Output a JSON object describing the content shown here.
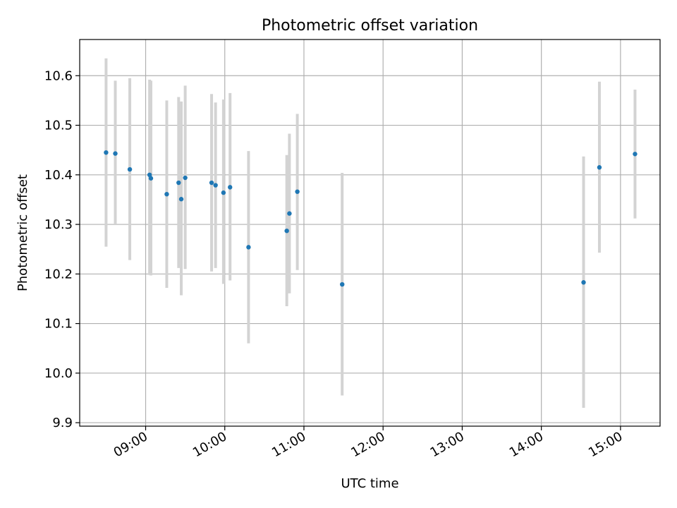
{
  "chart_data": {
    "type": "scatter",
    "title": "Photometric offset variation",
    "xlabel": "UTC time",
    "ylabel": "Photometric offset",
    "xlim": [
      "08:10",
      "15:30"
    ],
    "ylim": [
      9.893,
      10.673
    ],
    "x_ticks": [
      "09:00",
      "10:00",
      "11:00",
      "12:00",
      "13:00",
      "14:00",
      "15:00"
    ],
    "y_ticks": [
      "9.9",
      "10.0",
      "10.1",
      "10.2",
      "10.3",
      "10.4",
      "10.5",
      "10.6"
    ],
    "grid": true,
    "series": [
      {
        "marker_color": "#1f77b4",
        "errorbar_color": "#d3d3d3",
        "points": [
          {
            "x": "08:30",
            "y": 10.445,
            "yerr_low": 10.255,
            "yerr_high": 10.635
          },
          {
            "x": "08:37",
            "y": 10.443,
            "yerr_low": 10.3,
            "yerr_high": 10.59
          },
          {
            "x": "08:48",
            "y": 10.411,
            "yerr_low": 10.228,
            "yerr_high": 10.595
          },
          {
            "x": "09:03",
            "y": 10.4,
            "yerr_low": 10.198,
            "yerr_high": 10.592
          },
          {
            "x": "09:04",
            "y": 10.393,
            "yerr_low": 10.197,
            "yerr_high": 10.59
          },
          {
            "x": "09:16",
            "y": 10.361,
            "yerr_low": 10.172,
            "yerr_high": 10.55
          },
          {
            "x": "09:25",
            "y": 10.384,
            "yerr_low": 10.212,
            "yerr_high": 10.557
          },
          {
            "x": "09:27",
            "y": 10.351,
            "yerr_low": 10.157,
            "yerr_high": 10.548
          },
          {
            "x": "09:30",
            "y": 10.394,
            "yerr_low": 10.21,
            "yerr_high": 10.58
          },
          {
            "x": "09:50",
            "y": 10.384,
            "yerr_low": 10.205,
            "yerr_high": 10.563
          },
          {
            "x": "09:53",
            "y": 10.379,
            "yerr_low": 10.212,
            "yerr_high": 10.546
          },
          {
            "x": "09:59",
            "y": 10.364,
            "yerr_low": 10.18,
            "yerr_high": 10.552
          },
          {
            "x": "10:04",
            "y": 10.375,
            "yerr_low": 10.187,
            "yerr_high": 10.565
          },
          {
            "x": "10:18",
            "y": 10.254,
            "yerr_low": 10.06,
            "yerr_high": 10.448
          },
          {
            "x": "10:47",
            "y": 10.287,
            "yerr_low": 10.135,
            "yerr_high": 10.44
          },
          {
            "x": "10:49",
            "y": 10.322,
            "yerr_low": 10.161,
            "yerr_high": 10.483
          },
          {
            "x": "10:55",
            "y": 10.366,
            "yerr_low": 10.208,
            "yerr_high": 10.523
          },
          {
            "x": "11:29",
            "y": 10.179,
            "yerr_low": 9.955,
            "yerr_high": 10.404
          },
          {
            "x": "14:32",
            "y": 10.183,
            "yerr_low": 9.93,
            "yerr_high": 10.437
          },
          {
            "x": "14:44",
            "y": 10.415,
            "yerr_low": 10.243,
            "yerr_high": 10.588
          },
          {
            "x": "15:11",
            "y": 10.442,
            "yerr_low": 10.312,
            "yerr_high": 10.572
          }
        ]
      }
    ]
  }
}
